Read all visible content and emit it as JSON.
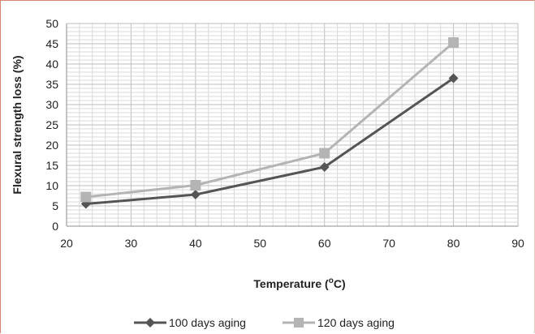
{
  "chart_data": {
    "type": "line",
    "title": "",
    "xlabel": "Temperature (oC)",
    "xlabel_main": "Temperature (",
    "xlabel_sup": "o",
    "xlabel_end": "C)",
    "ylabel": "Flexural strength loss (%)",
    "xlim": [
      20,
      90
    ],
    "ylim": [
      0,
      50
    ],
    "xticks": [
      20,
      30,
      40,
      50,
      60,
      70,
      80,
      90
    ],
    "yticks": [
      0,
      5,
      10,
      15,
      20,
      25,
      30,
      35,
      40,
      45,
      50
    ],
    "grid": true,
    "legend_position": "bottom",
    "series": [
      {
        "name": "100 days aging",
        "marker": "diamond",
        "color": "#555555",
        "x": [
          23,
          40,
          60,
          80
        ],
        "y": [
          5.5,
          7.8,
          14.6,
          36.5
        ]
      },
      {
        "name": "120 days aging",
        "marker": "square",
        "color": "#b4b4b4",
        "x": [
          23,
          40,
          60,
          80
        ],
        "y": [
          7.2,
          10.1,
          18.0,
          45.3
        ]
      }
    ]
  }
}
